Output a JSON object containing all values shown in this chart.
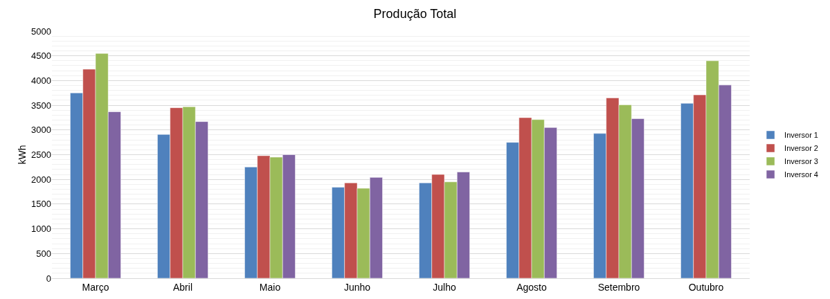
{
  "chart_data": {
    "type": "bar",
    "title": "Produção Total",
    "ylabel": "kWh",
    "categories": [
      "Março",
      "Abril",
      "Maio",
      "Junho",
      "Julho",
      "Agosto",
      "Setembro",
      "Outubro"
    ],
    "series": [
      {
        "name": "Inversor 1",
        "color": "#4f81bd",
        "values": [
          3750,
          2910,
          2250,
          1840,
          1930,
          2750,
          2930,
          3540
        ]
      },
      {
        "name": "Inversor 2",
        "color": "#c0504d",
        "values": [
          4230,
          3450,
          2480,
          1930,
          2100,
          3250,
          3650,
          3710
        ]
      },
      {
        "name": "Inversor 3",
        "color": "#9bbb59",
        "values": [
          4550,
          3470,
          2450,
          1820,
          1950,
          3210,
          3510,
          4400
        ]
      },
      {
        "name": "Inversor 4",
        "color": "#8064a2",
        "values": [
          3370,
          3170,
          2500,
          2040,
          2150,
          3050,
          3230,
          3910
        ]
      }
    ],
    "ylim": [
      0,
      5000
    ],
    "yticks": [
      0,
      500,
      1000,
      1500,
      2000,
      2500,
      3000,
      3500,
      4000,
      4500,
      5000
    ],
    "grid": "y",
    "legend": "right"
  }
}
